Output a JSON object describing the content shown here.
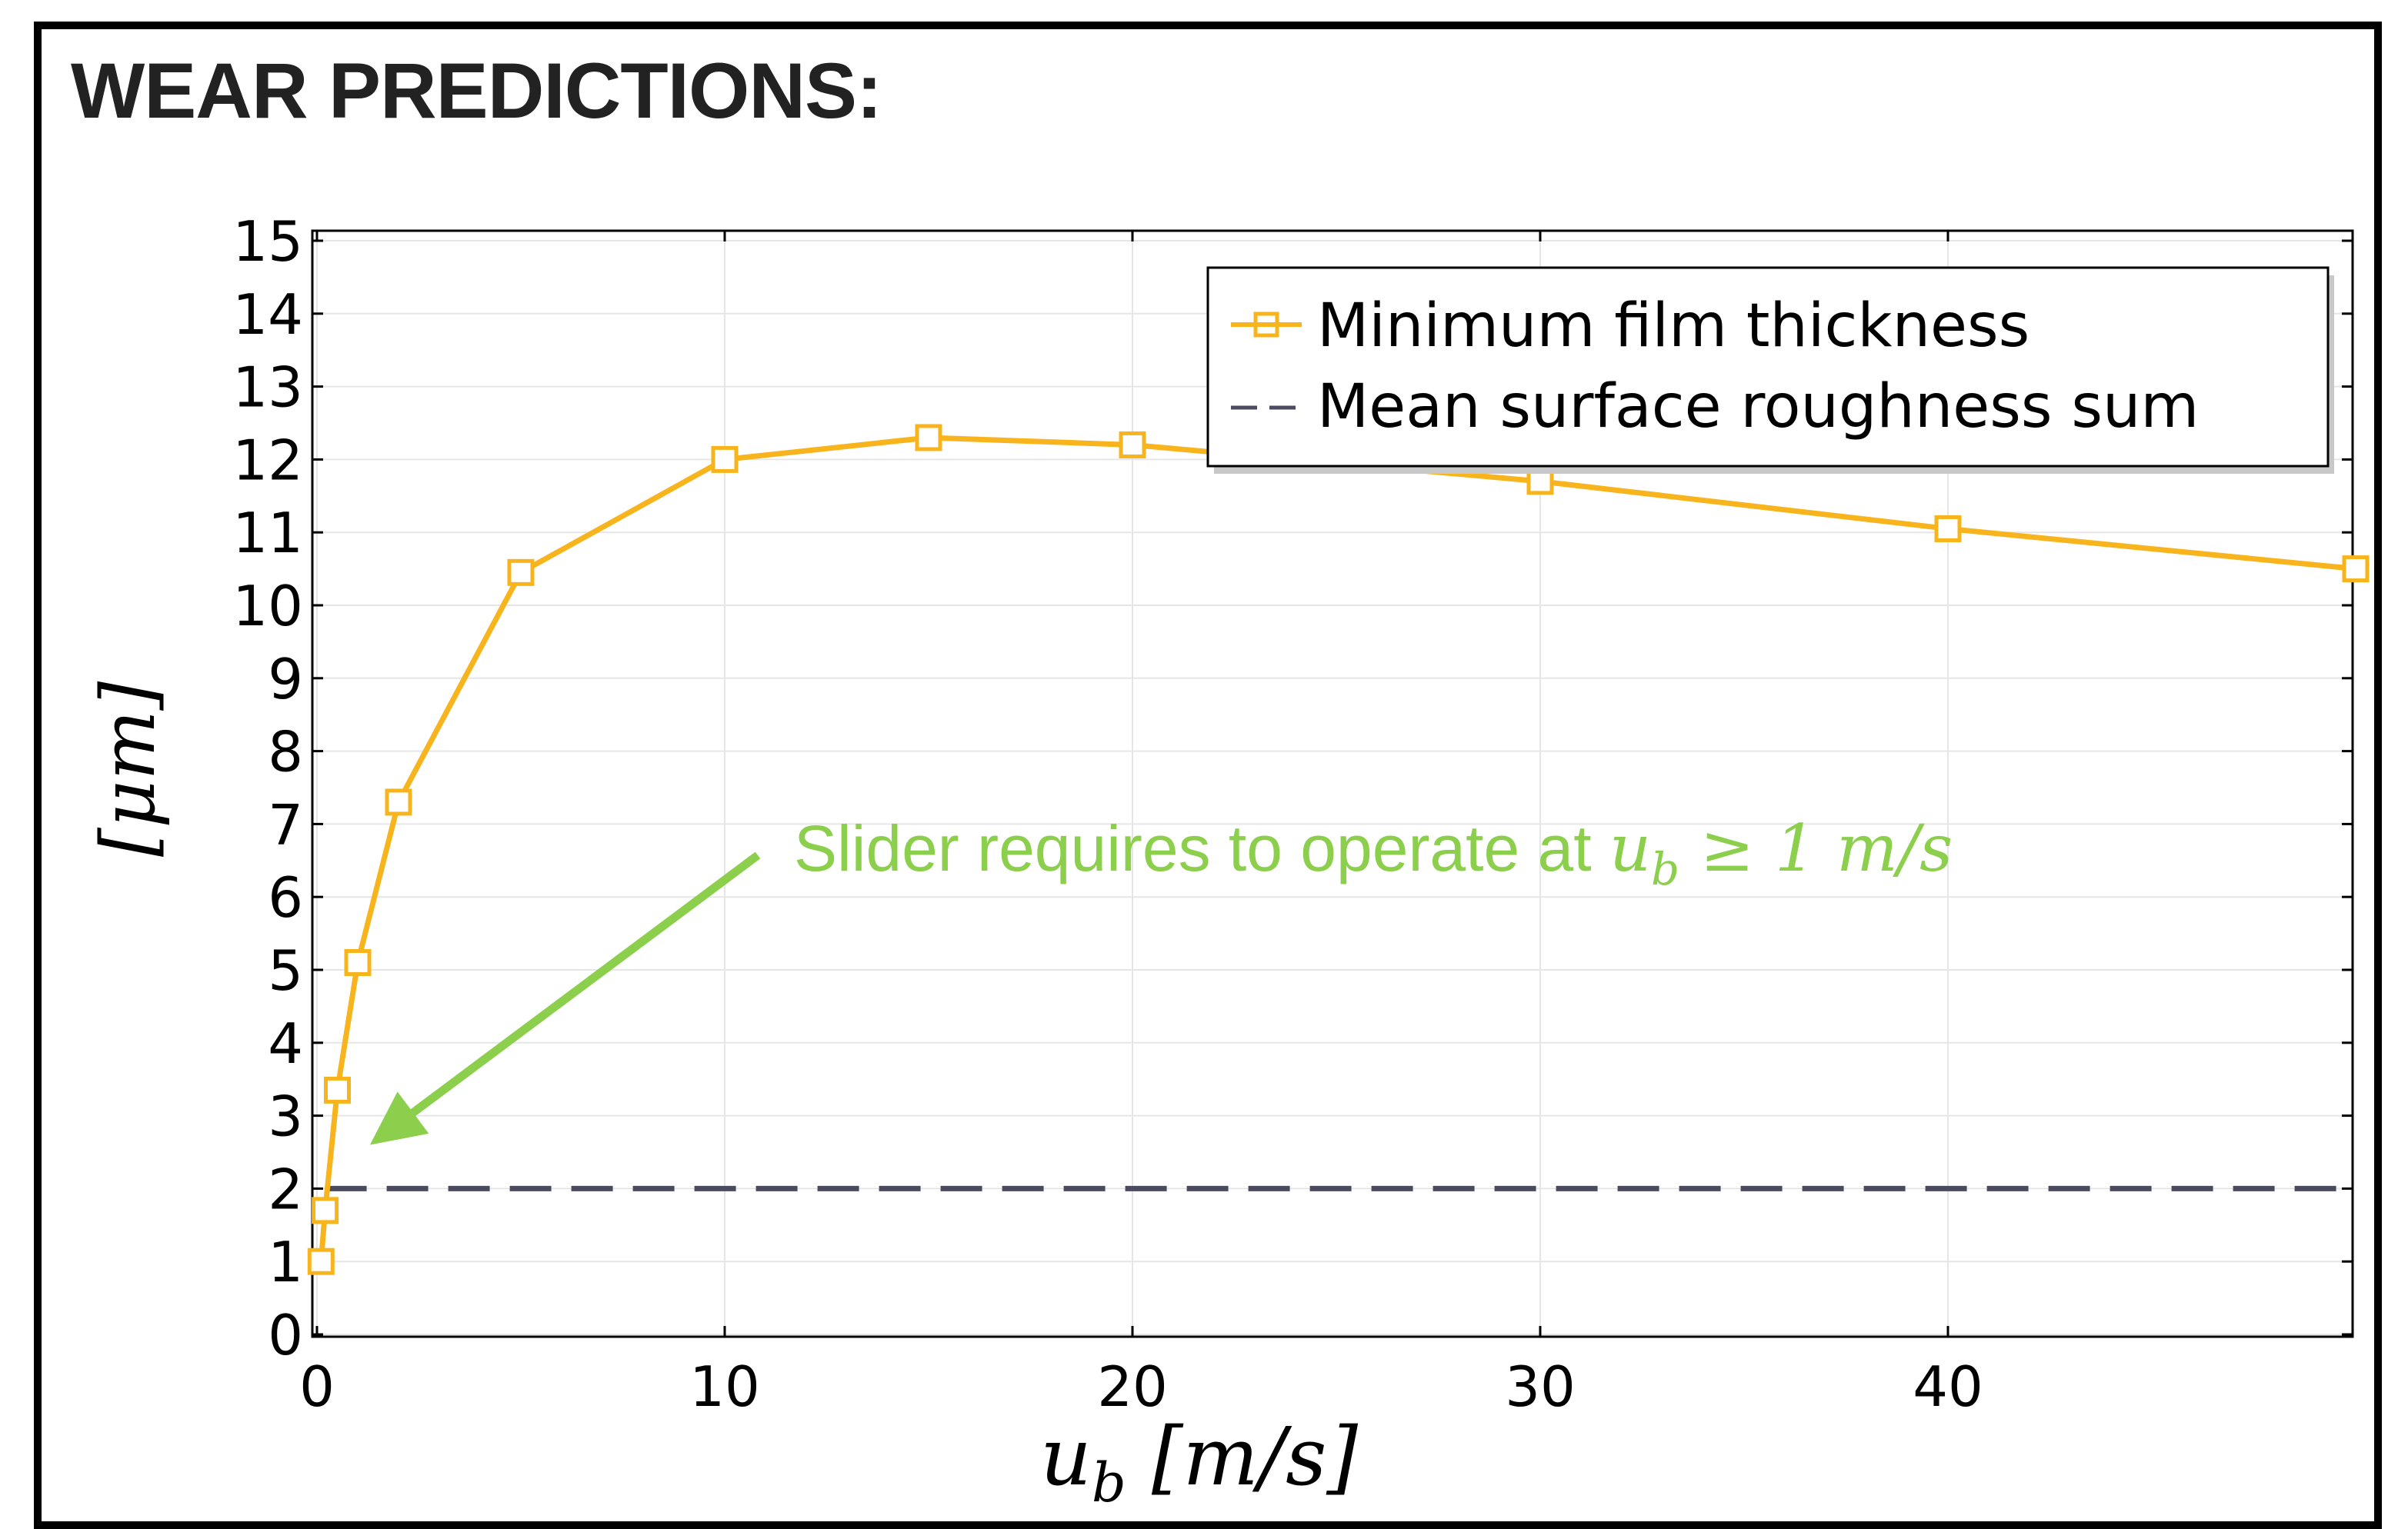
{
  "header": {
    "title": "WEAR PREDICTIONS:"
  },
  "colors": {
    "series1": "#f7b41d",
    "series2": "#4a4a60",
    "annotation": "#8ccf4d"
  },
  "chart_data": {
    "type": "line",
    "xlabel": "u_b [m/s]",
    "ylabel": "[μm]",
    "xlim": [
      0,
      50
    ],
    "ylim": [
      0,
      15
    ],
    "x_ticks": [
      0,
      10,
      20,
      30,
      40
    ],
    "y_ticks": [
      0,
      1,
      2,
      3,
      4,
      5,
      6,
      7,
      8,
      9,
      10,
      11,
      12,
      13,
      14,
      15
    ],
    "grid": true,
    "legend_position": "top-right",
    "series": [
      {
        "name": "Minimum film thickness",
        "x": [
          0.1,
          0.2,
          0.5,
          1,
          2,
          5,
          10,
          15,
          20,
          30,
          40,
          50
        ],
        "y": [
          1.0,
          1.7,
          3.35,
          5.1,
          7.3,
          10.45,
          12.0,
          12.3,
          12.2,
          11.7,
          11.05,
          10.5
        ],
        "style": "solid-square-markers"
      },
      {
        "name": "Mean surface roughness sum",
        "x": [
          0.2,
          50
        ],
        "y": [
          2.0,
          2.0
        ],
        "style": "dashed"
      }
    ],
    "annotation": {
      "text": "Slider requires to operate at ",
      "math": "u",
      "math_sub": "b",
      "math_rest": " ≥ 1 m/s",
      "arrow_to": {
        "x": 1.3,
        "y": 2.6
      }
    }
  }
}
